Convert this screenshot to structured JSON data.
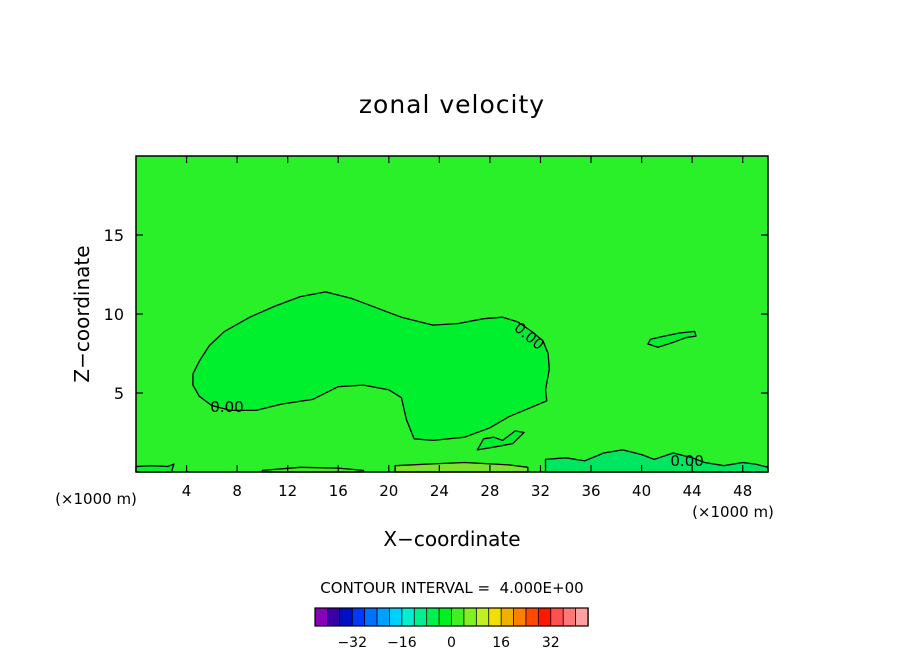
{
  "chart_data": {
    "type": "contour",
    "title": "zonal velocity",
    "xlabel": "X−coordinate",
    "ylabel": "Z−coordinate",
    "x_unit_label": "(×1000 m)",
    "x_unit_label_left": "(×1000 m)",
    "xlim": [
      0,
      50
    ],
    "ylim": [
      0,
      20
    ],
    "x_ticks": [
      4,
      8,
      12,
      16,
      20,
      24,
      28,
      32,
      36,
      40,
      44,
      48
    ],
    "x_tick_labels": [
      "4",
      "8",
      "12",
      "16",
      "20",
      "24",
      "28",
      "32",
      "36",
      "40",
      "44",
      "48"
    ],
    "y_ticks": [
      5,
      10,
      15
    ],
    "y_tick_labels": [
      "5",
      "10",
      "15"
    ],
    "background_level_color": "#2af02a",
    "contour_line_color": "#000000",
    "contour_interval_text": "CONTOUR INTERVAL =  4.000E+00",
    "contour_labels": [
      {
        "text": "0.00",
        "x": 7.2,
        "y": 4.1
      },
      {
        "text": "0.00",
        "x": 31.1,
        "y": 8.6
      },
      {
        "text": "0.00",
        "x": 43.6,
        "y": 0.7
      }
    ],
    "regions": [
      {
        "name": "main-weak-negative-region",
        "color": "#00f02e",
        "points": [
          [
            4.5,
            5.5
          ],
          [
            5,
            4.8
          ],
          [
            6,
            4.2
          ],
          [
            7.5,
            3.9
          ],
          [
            9.5,
            3.9
          ],
          [
            11.5,
            4.3
          ],
          [
            14,
            4.6
          ],
          [
            16,
            5.4
          ],
          [
            18,
            5.5
          ],
          [
            20,
            5.2
          ],
          [
            21,
            4.7
          ],
          [
            21.4,
            3.3
          ],
          [
            22,
            2.1
          ],
          [
            23.5,
            2.0
          ],
          [
            26,
            2.2
          ],
          [
            28,
            2.8
          ],
          [
            29.5,
            3.5
          ],
          [
            31,
            4.0
          ],
          [
            32.5,
            4.5
          ],
          [
            32.4,
            5.2
          ],
          [
            32.7,
            6.5
          ],
          [
            32.6,
            7.5
          ],
          [
            32.2,
            8.3
          ],
          [
            31.3,
            8.9
          ],
          [
            30.2,
            9.5
          ],
          [
            29,
            9.8
          ],
          [
            27.5,
            9.7
          ],
          [
            25.5,
            9.4
          ],
          [
            23.5,
            9.3
          ],
          [
            21,
            9.8
          ],
          [
            19,
            10.4
          ],
          [
            17,
            11.0
          ],
          [
            15,
            11.4
          ],
          [
            13,
            11.1
          ],
          [
            11,
            10.5
          ],
          [
            9,
            9.8
          ],
          [
            7,
            8.9
          ],
          [
            5.8,
            8.0
          ],
          [
            5,
            7.0
          ],
          [
            4.5,
            6.2
          ]
        ]
      },
      {
        "name": "small-lobe-near-x30",
        "color": "#00f02e",
        "points": [
          [
            27,
            1.4
          ],
          [
            28.5,
            1.6
          ],
          [
            29.8,
            1.8
          ],
          [
            30.7,
            2.5
          ],
          [
            30,
            2.6
          ],
          [
            29,
            2.0
          ],
          [
            28.3,
            2.2
          ],
          [
            27.5,
            2.1
          ]
        ]
      },
      {
        "name": "elongated-patch-near-x42",
        "color": "#00f02e",
        "points": [
          [
            40.5,
            8.1
          ],
          [
            41.3,
            7.9
          ],
          [
            42.5,
            8.2
          ],
          [
            43.5,
            8.5
          ],
          [
            44.3,
            8.6
          ],
          [
            44.2,
            8.9
          ],
          [
            43,
            8.8
          ],
          [
            41.8,
            8.6
          ],
          [
            40.7,
            8.4
          ]
        ]
      },
      {
        "name": "surface-band-right",
        "color": "#00e660",
        "points": [
          [
            32.4,
            0
          ],
          [
            32.4,
            0.8
          ],
          [
            34,
            0.9
          ],
          [
            35.5,
            0.7
          ],
          [
            37,
            1.2
          ],
          [
            38.5,
            1.4
          ],
          [
            40,
            1.1
          ],
          [
            41,
            0.8
          ],
          [
            42.5,
            1.2
          ],
          [
            44,
            0.9
          ],
          [
            45,
            0.6
          ],
          [
            46.5,
            0.4
          ],
          [
            48,
            0.6
          ],
          [
            49,
            0.5
          ],
          [
            50,
            0.3
          ],
          [
            50,
            0
          ]
        ]
      },
      {
        "name": "surface-band-left",
        "color": "#00f02e",
        "points": [
          [
            0,
            0
          ],
          [
            0,
            0.35
          ],
          [
            1.2,
            0.4
          ],
          [
            2.5,
            0.35
          ],
          [
            3,
            0.5
          ],
          [
            2.8,
            0
          ],
          [
            0,
            0
          ]
        ]
      },
      {
        "name": "surface-positive-strip-a",
        "color": "#4be82a",
        "points": [
          [
            10,
            0
          ],
          [
            10,
            0.1
          ],
          [
            13,
            0.3
          ],
          [
            16,
            0.25
          ],
          [
            18,
            0.1
          ],
          [
            18,
            0
          ]
        ]
      },
      {
        "name": "surface-positive-strip-b",
        "color": "#7ae52a",
        "points": [
          [
            20.5,
            0
          ],
          [
            20.5,
            0.4
          ],
          [
            23,
            0.5
          ],
          [
            26,
            0.6
          ],
          [
            29.5,
            0.45
          ],
          [
            31,
            0.3
          ],
          [
            31,
            0
          ]
        ]
      }
    ],
    "colorbar": {
      "colors": [
        "#8a00b8",
        "#3a00a8",
        "#0010c8",
        "#0038ff",
        "#0070ff",
        "#00a0ff",
        "#00d0ff",
        "#00f0d0",
        "#00f090",
        "#00f050",
        "#00f020",
        "#40f020",
        "#80f020",
        "#c0f020",
        "#f0e000",
        "#f0b000",
        "#ff8000",
        "#ff4800",
        "#ff1800",
        "#ff5050",
        "#ff7878",
        "#ffa0a0"
      ],
      "ticks": [
        -32,
        -16,
        0,
        16,
        32
      ],
      "tick_labels": [
        "−32",
        "−16",
        "0",
        "16",
        "32"
      ],
      "range": [
        -44,
        44
      ]
    }
  }
}
